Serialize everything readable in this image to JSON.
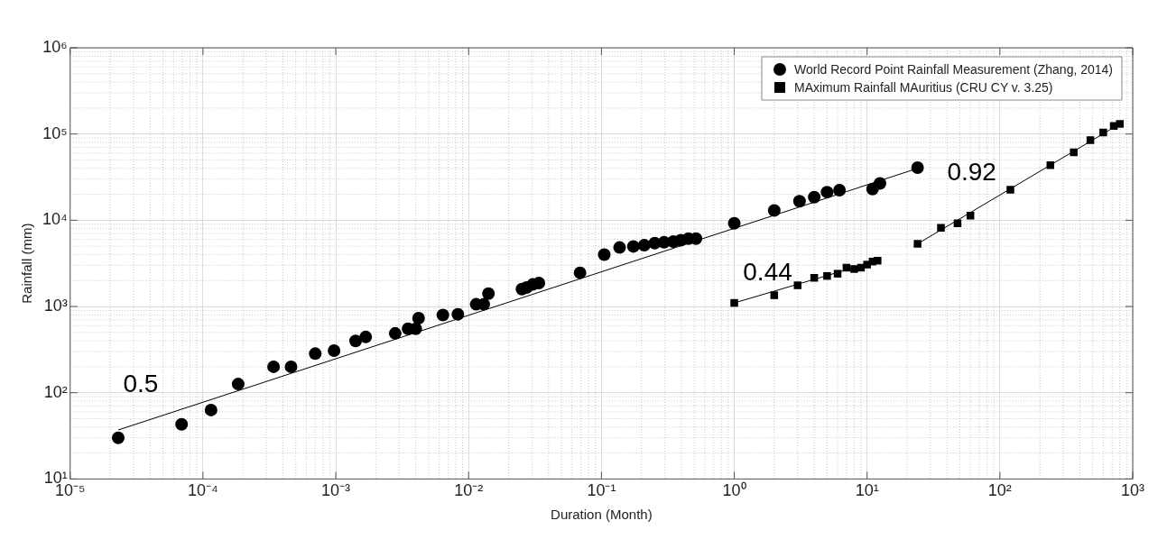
{
  "chart_data": {
    "type": "scatter",
    "xlabel": "Duration (Month)",
    "ylabel": "Rainfall (mm)",
    "log": "xy",
    "grid": true,
    "legend": "top right",
    "xlim": [
      1e-05,
      1000
    ],
    "ylim": [
      10,
      1000000
    ],
    "xticks": [
      {
        "value": 1e-05,
        "label": "10⁻⁵"
      },
      {
        "value": 0.0001,
        "label": "10⁻⁴"
      },
      {
        "value": 0.001,
        "label": "10⁻³"
      },
      {
        "value": 0.01,
        "label": "10⁻²"
      },
      {
        "value": 0.1,
        "label": "10⁻¹"
      },
      {
        "value": 1,
        "label": "10⁰"
      },
      {
        "value": 10,
        "label": "10¹"
      },
      {
        "value": 100,
        "label": "10²"
      },
      {
        "value": 1000,
        "label": "10³"
      }
    ],
    "yticks": [
      {
        "value": 10,
        "label": "10¹"
      },
      {
        "value": 100,
        "label": "10²"
      },
      {
        "value": 1000,
        "label": "10³"
      },
      {
        "value": 10000,
        "label": "10⁴"
      },
      {
        "value": 100000,
        "label": "10⁵"
      },
      {
        "value": 1000000,
        "label": "10⁶"
      }
    ],
    "annotations": [
      "0.5",
      "0.44",
      "0.92"
    ],
    "series": [
      {
        "name": "World Record Point Rainfall Measurement (Zhang, 2014)",
        "marker": "circle",
        "color": "#000000",
        "x": [
          2.3e-05,
          6.9e-05,
          0.000115,
          0.000184,
          0.00034,
          0.00046,
          0.0007,
          0.00097,
          0.00141,
          0.00168,
          0.0028,
          0.0035,
          0.004,
          0.0042,
          0.0064,
          0.0083,
          0.0114,
          0.013,
          0.0141,
          0.0252,
          0.0273,
          0.0304,
          0.0338,
          0.069,
          0.105,
          0.137,
          0.174,
          0.21,
          0.252,
          0.296,
          0.347,
          0.396,
          0.452,
          0.515,
          1,
          2,
          3.1,
          4,
          5,
          6.2,
          11,
          12.5,
          24
        ],
        "values": [
          30,
          43,
          63,
          126,
          200,
          200,
          284,
          308,
          398,
          443,
          488,
          551,
          551,
          733,
          795,
          813,
          1060,
          1060,
          1410,
          1590,
          1660,
          1800,
          1870,
          2460,
          4000,
          4830,
          4970,
          5130,
          5420,
          5550,
          5650,
          5880,
          6120,
          6120,
          9230,
          13000,
          16600,
          18500,
          21200,
          22300,
          23000,
          26700,
          40800
        ]
      },
      {
        "name": "MAximum Rainfall MAuritius (CRU CY v. 3.25)",
        "marker": "square",
        "color": "#000000",
        "x": [
          1,
          2,
          3,
          4,
          5,
          6,
          7,
          8,
          9,
          10,
          11,
          12,
          24,
          36,
          48,
          60,
          120,
          240,
          360,
          480,
          600,
          720,
          800
        ],
        "values": [
          1100,
          1350,
          1760,
          2150,
          2260,
          2400,
          2820,
          2720,
          2820,
          3060,
          3320,
          3400,
          5330,
          8170,
          9230,
          11300,
          22600,
          43400,
          61200,
          85000,
          104000,
          124000,
          131000
        ]
      },
      {
        "type": "line",
        "marker": "none",
        "color": "#000000",
        "x": [
          2.3e-05,
          24
        ],
        "values": [
          37,
          40000
        ]
      },
      {
        "type": "line",
        "marker": "none",
        "color": "#000000",
        "x": [
          1,
          12
        ],
        "values": [
          1100,
          3400
        ]
      },
      {
        "type": "line",
        "marker": "none",
        "color": "#000000",
        "x": [
          24,
          800
        ],
        "values": [
          5330,
          131000
        ]
      }
    ]
  }
}
